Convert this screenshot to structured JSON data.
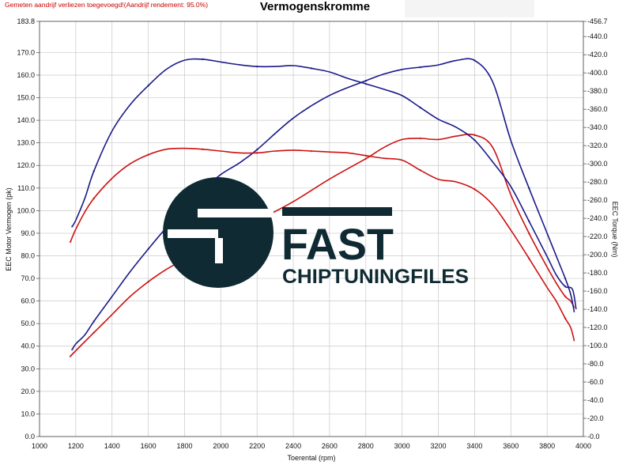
{
  "header": {
    "note": "Gemeten aandrijf verliezen toegevoegd!(Aandrijf rendement: 95.0%)",
    "title": "Vermogenskromme"
  },
  "logo": {
    "name": "FAST",
    "tagline": "CHIPTUNINGFILES",
    "color": "#0f2a32"
  },
  "chart_data": {
    "type": "line",
    "title": "Vermogenskromme",
    "xlabel": "Toerental (rpm)",
    "ylabel_left": "EEC Motor Vermogen (pk)",
    "ylabel_right": "EEC Torque (Nm)",
    "xlim": [
      1000,
      4000
    ],
    "ylim_left": [
      0,
      183.8
    ],
    "ylim_right": [
      0,
      456.7
    ],
    "x_ticks": [
      "1000",
      "1200",
      "1400",
      "1600",
      "1800",
      "2000",
      "2200",
      "2400",
      "2600",
      "2800",
      "3000",
      "3200",
      "3400",
      "3600",
      "3800",
      "4000"
    ],
    "y_left_ticks": [
      "0.0",
      "10.0",
      "20.0",
      "30.0",
      "40.0",
      "50.0",
      "60.0",
      "70.0",
      "80.0",
      "90.0",
      "100.0",
      "110.0",
      "120.0",
      "130.0",
      "140.0",
      "150.0",
      "160.0",
      "170.0",
      "183.8"
    ],
    "y_right_ticks": [
      "0.0",
      "20.0",
      "40.0",
      "60.0",
      "80.0",
      "100.0",
      "120.0",
      "140.0",
      "160.0",
      "180.0",
      "200.0",
      "220.0",
      "240.0",
      "260.0",
      "280.0",
      "300.0",
      "320.0",
      "340.0",
      "360.0",
      "380.0",
      "400.0",
      "420.0",
      "440.0",
      "456.7"
    ],
    "grid": true,
    "series": [
      {
        "color": "#cc1111",
        "axis": "left",
        "x": [
          1170,
          1200,
          1250,
          1300,
          1400,
          1500,
          1600,
          1700,
          1800,
          1900,
          2000,
          2100,
          2200,
          2400,
          2600,
          2800,
          2900,
          3000,
          3100,
          3200,
          3300,
          3400,
          3500,
          3600,
          3700,
          3800,
          3850,
          3900,
          3930,
          3950
        ],
        "y": [
          35.5,
          38,
          42,
          46,
          54,
          62,
          68.5,
          74,
          78.5,
          82.5,
          87,
          91.5,
          95.5,
          104,
          114,
          123,
          128,
          131.5,
          132,
          131.5,
          133,
          133.5,
          128,
          107,
          90,
          75,
          68,
          62,
          60,
          57
        ]
      },
      {
        "color": "#1a1a8a",
        "axis": "left",
        "x": [
          1180,
          1200,
          1250,
          1300,
          1400,
          1500,
          1600,
          1700,
          1800,
          1900,
          2000,
          2100,
          2200,
          2400,
          2600,
          2800,
          2900,
          3000,
          3100,
          3200,
          3300,
          3400,
          3500,
          3600,
          3700,
          3800,
          3850,
          3900,
          3930,
          3950
        ],
        "y": [
          38.5,
          41,
          45,
          51,
          62,
          73,
          83,
          92.5,
          101,
          109,
          116,
          121,
          127,
          141,
          151,
          157.5,
          160.5,
          162.5,
          163.5,
          164.5,
          166.5,
          166.5,
          157,
          131,
          110,
          90,
          80,
          70,
          63,
          55
        ]
      },
      {
        "color": "#cc1111",
        "axis": "right",
        "x": [
          1170,
          1200,
          1250,
          1300,
          1400,
          1500,
          1600,
          1700,
          1800,
          1900,
          2000,
          2100,
          2200,
          2300,
          2400,
          2500,
          2600,
          2700,
          2800,
          2900,
          3000,
          3100,
          3200,
          3300,
          3400,
          3500,
          3600,
          3700,
          3800,
          3850,
          3900,
          3930,
          3950
        ],
        "y": [
          214,
          228,
          247,
          262,
          284,
          300,
          310,
          316,
          317,
          316,
          314,
          312,
          312,
          314,
          315,
          314,
          313,
          312,
          309,
          306,
          304,
          293,
          283,
          280,
          272,
          255,
          227,
          196,
          164,
          149,
          130,
          120,
          105
        ]
      },
      {
        "color": "#1a1a8a",
        "axis": "right",
        "x": [
          1180,
          1200,
          1250,
          1300,
          1400,
          1500,
          1600,
          1700,
          1800,
          1900,
          2000,
          2100,
          2200,
          2300,
          2400,
          2500,
          2600,
          2700,
          2800,
          2900,
          3000,
          3100,
          3200,
          3300,
          3400,
          3500,
          3600,
          3700,
          3800,
          3850,
          3900,
          3940,
          3960
        ],
        "y": [
          231,
          238,
          262,
          292,
          336,
          365,
          386,
          404,
          414,
          415,
          412,
          409,
          407,
          407,
          408,
          405,
          401,
          394,
          388,
          382,
          375,
          362,
          349,
          340,
          326,
          302,
          275,
          237,
          198,
          178,
          165,
          162,
          140
        ]
      }
    ]
  }
}
